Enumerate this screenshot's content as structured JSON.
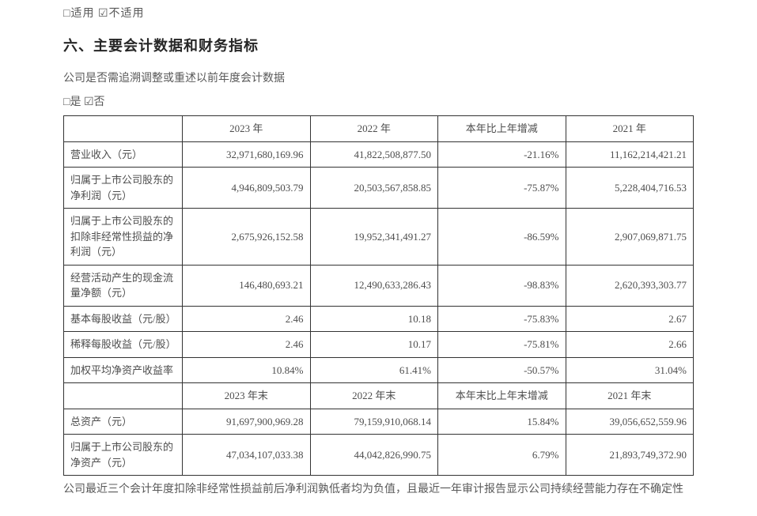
{
  "truncated_top": "□适用 ☑不适用",
  "heading": "六、主要会计数据和财务指标",
  "lead_line": "公司是否需追溯调整或重述以前年度会计数据",
  "checkbox_line": "□是 ☑否",
  "table": {
    "header1": {
      "blank": "",
      "c1": "2023 年",
      "c2": "2022 年",
      "c3": "本年比上年增减",
      "c4": "2021 年"
    },
    "rows1": [
      {
        "label": "营业收入（元）",
        "c1": "32,971,680,169.96",
        "c2": "41,822,508,877.50",
        "c3": "-21.16%",
        "c4": "11,162,214,421.21"
      },
      {
        "label": "归属于上市公司股东的净利润（元）",
        "c1": "4,946,809,503.79",
        "c2": "20,503,567,858.85",
        "c3": "-75.87%",
        "c4": "5,228,404,716.53"
      },
      {
        "label": "归属于上市公司股东的扣除非经常性损益的净利润（元）",
        "c1": "2,675,926,152.58",
        "c2": "19,952,341,491.27",
        "c3": "-86.59%",
        "c4": "2,907,069,871.75"
      },
      {
        "label": "经营活动产生的现金流量净额（元）",
        "c1": "146,480,693.21",
        "c2": "12,490,633,286.43",
        "c3": "-98.83%",
        "c4": "2,620,393,303.77"
      },
      {
        "label": "基本每股收益（元/股）",
        "c1": "2.46",
        "c2": "10.18",
        "c3": "-75.83%",
        "c4": "2.67"
      },
      {
        "label": "稀释每股收益（元/股）",
        "c1": "2.46",
        "c2": "10.17",
        "c3": "-75.81%",
        "c4": "2.66"
      },
      {
        "label": "加权平均净资产收益率",
        "c1": "10.84%",
        "c2": "61.41%",
        "c3": "-50.57%",
        "c4": "31.04%"
      }
    ],
    "header2": {
      "blank": "",
      "c1": "2023 年末",
      "c2": "2022 年末",
      "c3": "本年末比上年末增减",
      "c4": "2021 年末"
    },
    "rows2": [
      {
        "label": "总资产（元）",
        "c1": "91,697,900,969.28",
        "c2": "79,159,910,068.14",
        "c3": "15.84%",
        "c4": "39,056,652,559.96"
      },
      {
        "label": "归属于上市公司股东的净资产（元）",
        "c1": "47,034,107,033.38",
        "c2": "44,042,826,990.75",
        "c3": "6.79%",
        "c4": "21,893,749,372.90"
      }
    ]
  },
  "footnote": "公司最近三个会计年度扣除非经常性损益前后净利润孰低者均为负值，且最近一年审计报告显示公司持续经营能力存在不确定性"
}
